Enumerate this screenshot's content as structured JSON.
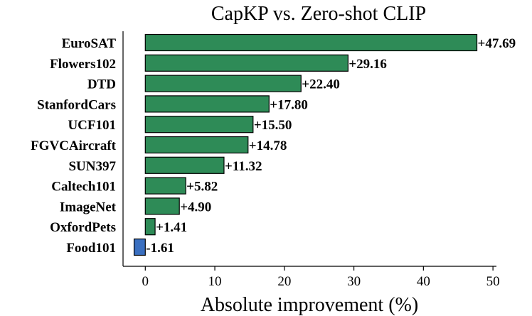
{
  "chart_data": {
    "type": "bar",
    "orientation": "horizontal",
    "title": "CapKP vs. Zero-shot CLIP",
    "xlabel": "Absolute improvement (%)",
    "ylabel": "",
    "categories": [
      "EuroSAT",
      "Flowers102",
      "DTD",
      "StanfordCars",
      "UCF101",
      "FGVCAircraft",
      "SUN397",
      "Caltech101",
      "ImageNet",
      "OxfordPets",
      "Food101"
    ],
    "values": [
      47.69,
      29.16,
      22.4,
      17.8,
      15.5,
      14.78,
      11.32,
      5.82,
      4.9,
      1.41,
      -1.61
    ],
    "value_labels": [
      "+47.69",
      "+29.16",
      "+22.40",
      "+17.80",
      "+15.50",
      "+14.78",
      "+11.32",
      "+5.82",
      "+4.90",
      "+1.41",
      "-1.61"
    ],
    "xlim": [
      -3.2,
      50.5
    ],
    "xticks": [
      0,
      10,
      20,
      30,
      40,
      50
    ],
    "xtick_labels": [
      "0",
      "10",
      "20",
      "30",
      "40",
      "50"
    ],
    "grid": false,
    "colors": {
      "positive": "#2e8b57",
      "negative": "#3a6fc0",
      "edge": "#000000"
    }
  }
}
